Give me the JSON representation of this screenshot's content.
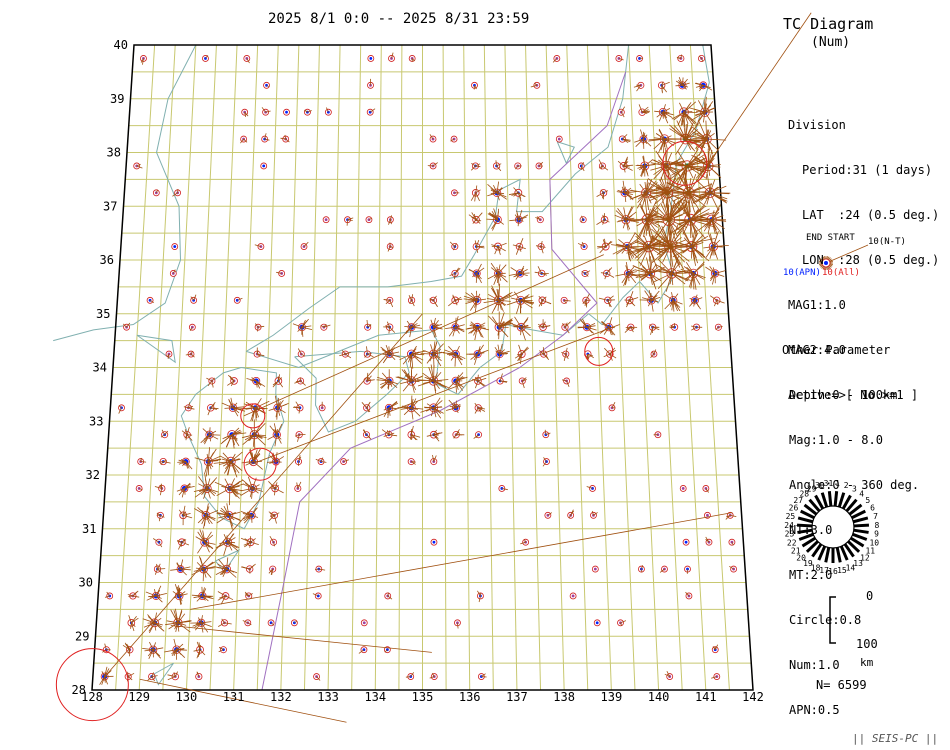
{
  "header": {
    "period_range": "2025 8/1 0:0 -- 2025 8/31 23:59",
    "title": "TC Diagram",
    "subtitle": "(Num)"
  },
  "map": {
    "lat_labels": [
      "40",
      "39",
      "38",
      "37",
      "36",
      "35",
      "34",
      "33",
      "32",
      "31",
      "30",
      "29",
      "28"
    ],
    "lon_labels": [
      "128",
      "129",
      "130",
      "131",
      "132",
      "133",
      "134",
      "135",
      "136",
      "137",
      "138",
      "139",
      "140",
      "141",
      "142"
    ],
    "lat_range": [
      28,
      40
    ],
    "lon_range": [
      128,
      142
    ],
    "grid_lat_step": 0.5,
    "grid_lon_step": 0.5,
    "colors": {
      "grid": "#c8c870",
      "coast": "#80b0b0",
      "trench": "#a070c0",
      "ray": "#a05010",
      "symbol_ring": "#d02020",
      "apn_dot": "#0020ff",
      "mark_dot": "#008040",
      "big_circle": "#e02020",
      "frame": "#000000"
    }
  },
  "division": {
    "heading": "Division",
    "period": "Period:31 (1 days)",
    "lat": "LAT  :24 (0.5 deg.)",
    "lon": "LON  :28 (0.5 deg.)",
    "mag1": "MAG1:1.0",
    "mag2": "MAG2:4.0",
    "active": "Active=>[ No.>=1 ]"
  },
  "legend": {
    "end_start": "END START",
    "nt_label": "10(N-T)",
    "apn_label": "10(APN)",
    "all_label": "10(All)"
  },
  "other_params": {
    "heading": "Other Parameter",
    "depth": "Depth:0 - 100km",
    "mag": "Mag:1.0 - 8.0",
    "angle": "Angle:0 - 360 deg.",
    "nt": "NT:3.0",
    "mt": "MT:2.0",
    "circle": "Circle:0.8",
    "num": "Num:1.0",
    "apn": "APN:0.5"
  },
  "day_wheel": {
    "days": [
      "1",
      "2",
      "3",
      "4",
      "5",
      "6",
      "7",
      "8",
      "9",
      "10",
      "11",
      "12",
      "13",
      "14",
      "15",
      "16",
      "17",
      "18",
      "19",
      "20",
      "21",
      "22",
      "23",
      "24",
      "25",
      "26",
      "27",
      "28",
      "29",
      "30",
      "31"
    ]
  },
  "depth_scale": {
    "top": "0",
    "bottom": "100",
    "unit": "km"
  },
  "count": "N= 6599",
  "footer": "|| SEIS-PC ||"
}
